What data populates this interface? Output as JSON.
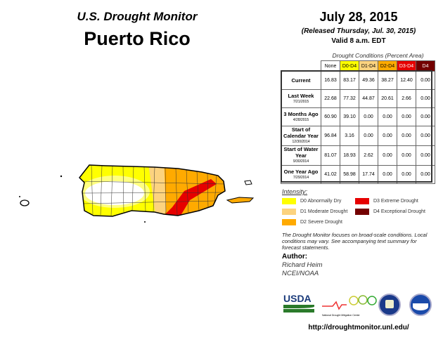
{
  "header": {
    "subtitle": "U.S. Drought Monitor",
    "title": "Puerto Rico",
    "date": "July 28, 2015",
    "released": "(Released Thursday, Jul. 30, 2015)",
    "valid": "Valid 8 a.m. EDT"
  },
  "table": {
    "caption": "Drought Conditions (Percent Area)",
    "columns": [
      {
        "label": "None",
        "color": "#ffffff"
      },
      {
        "label": "D0-D4",
        "color": "#ffff00"
      },
      {
        "label": "D1-D4",
        "color": "#fcd37f"
      },
      {
        "label": "D2-D4",
        "color": "#ffaa00"
      },
      {
        "label": "D3-D4",
        "color": "#e60000"
      },
      {
        "label": "D4",
        "color": "#730000"
      }
    ],
    "rows": [
      {
        "label": "Current",
        "date": "",
        "values": [
          "16.83",
          "83.17",
          "49.36",
          "38.27",
          "12.40",
          "0.00"
        ]
      },
      {
        "label": "Last Week",
        "date": "7/21/2015",
        "values": [
          "22.68",
          "77.32",
          "44.87",
          "20.61",
          "2.66",
          "0.00"
        ]
      },
      {
        "label": "3 Months Ago",
        "date": "4/28/2015",
        "values": [
          "60.90",
          "39.10",
          "0.00",
          "0.00",
          "0.00",
          "0.00"
        ]
      },
      {
        "label": "Start of Calendar Year",
        "date": "12/30/2014",
        "values": [
          "96.84",
          "3.16",
          "0.00",
          "0.00",
          "0.00",
          "0.00"
        ]
      },
      {
        "label": "Start of Water Year",
        "date": "9/30/2014",
        "values": [
          "81.07",
          "18.93",
          "2.62",
          "0.00",
          "0.00",
          "0.00"
        ]
      },
      {
        "label": "One Year Ago",
        "date": "7/29/2014",
        "values": [
          "41.02",
          "58.98",
          "17.74",
          "0.00",
          "0.00",
          "0.00"
        ]
      }
    ]
  },
  "legend": {
    "title": "Intensity:",
    "items": [
      {
        "label": "D0 Abnormally Dry",
        "color": "#ffff00"
      },
      {
        "label": "D1 Moderate Drought",
        "color": "#fcd37f"
      },
      {
        "label": "D2 Severe Drought",
        "color": "#ffaa00"
      },
      {
        "label": "D3 Extreme Drought",
        "color": "#e60000"
      },
      {
        "label": "D4 Exceptional Drought",
        "color": "#730000"
      }
    ]
  },
  "note": "The Drought Monitor focuses on broad-scale conditions. Local conditions may vary. See accompanying text summary for forecast statements.",
  "author": {
    "heading": "Author:",
    "name": "Richard Heim",
    "org": "NCEI/NOAA"
  },
  "logos": {
    "usda": "USDA",
    "ndmc": "National Drought Mitigation Center"
  },
  "url": "http://droughtmonitor.unl.edu/"
}
